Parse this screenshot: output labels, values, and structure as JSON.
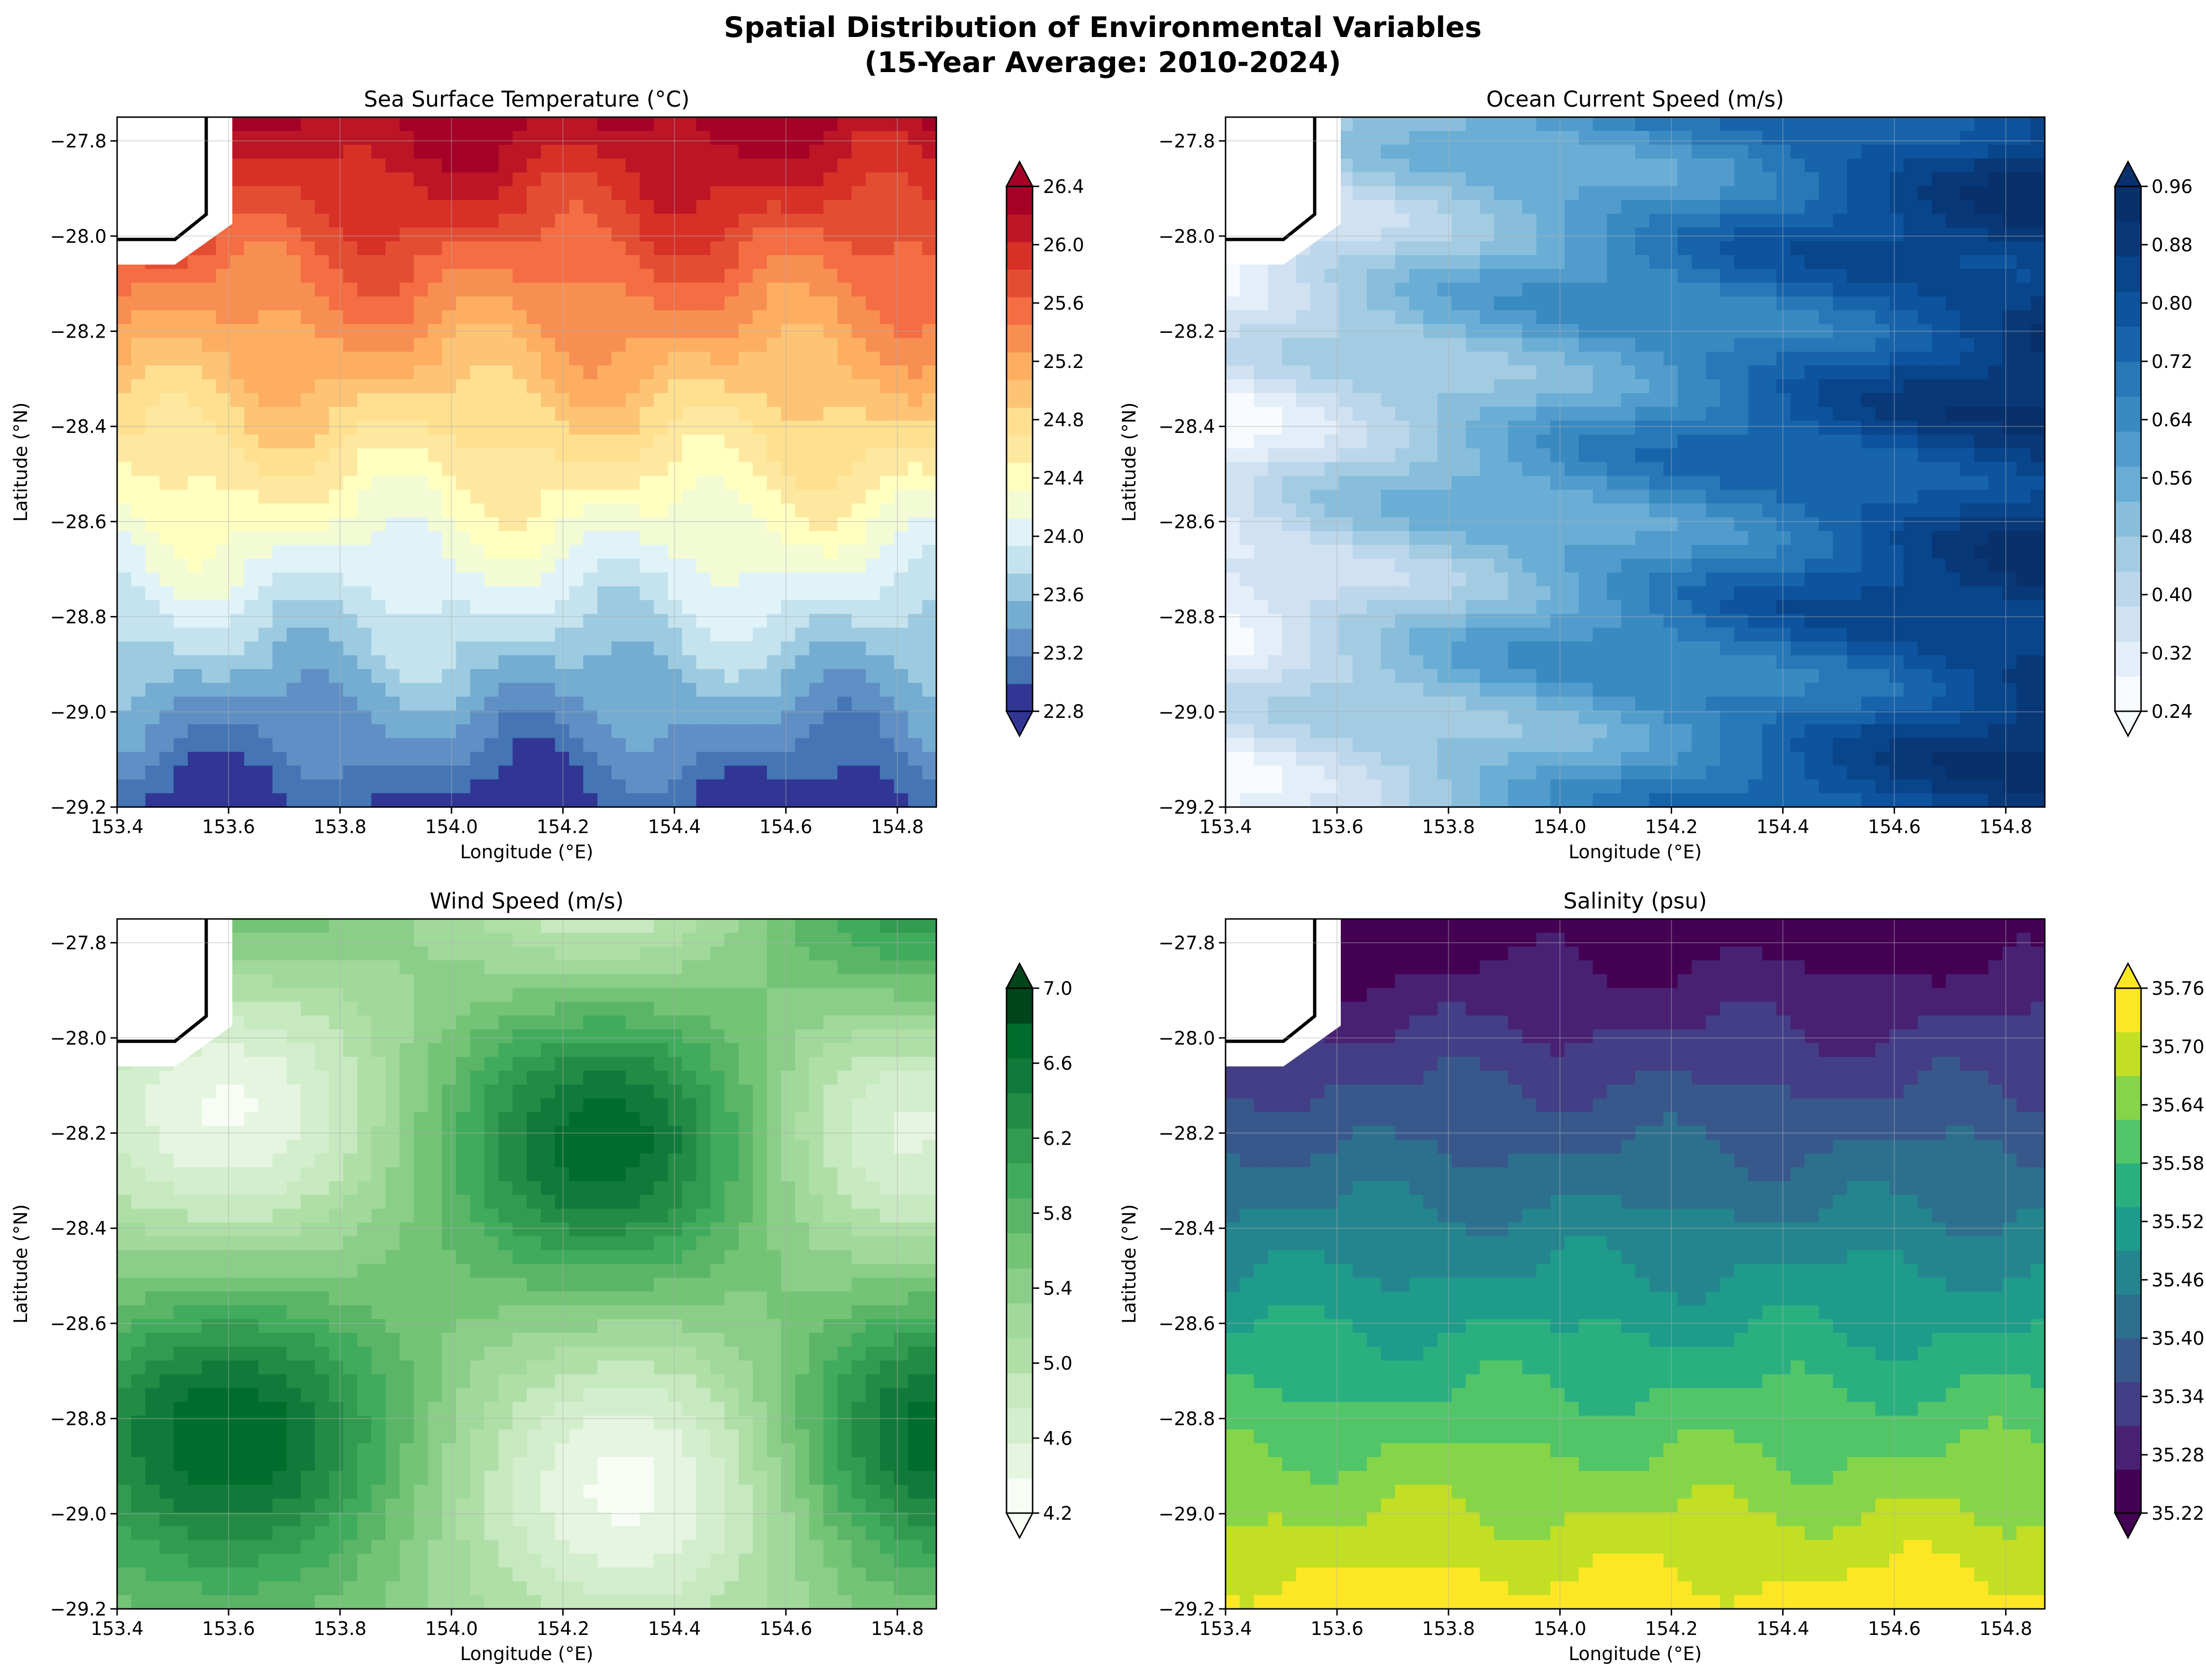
{
  "figure": {
    "title_line1": "Spatial Distribution of Environmental Variables",
    "title_line2": "(15-Year Average: 2010-2024)"
  },
  "chart_data": [
    {
      "type": "heatmap",
      "title": "Sea Surface Temperature (°C)",
      "xlabel": "Longitude (°E)",
      "ylabel": "Latitude (°N)",
      "xlim": [
        153.4,
        154.87
      ],
      "ylim": [
        -29.2,
        -27.75
      ],
      "xticks": [
        "153.4",
        "153.6",
        "153.8",
        "154.0",
        "154.2",
        "154.4",
        "154.6",
        "154.8"
      ],
      "yticks": [
        "−27.8",
        "−28.0",
        "−28.2",
        "−28.4",
        "−28.6",
        "−28.8",
        "−29.0",
        "−29.2"
      ],
      "colormap": "RdYlBu_r",
      "colorbar_range": [
        22.8,
        26.4
      ],
      "colorbar_ticks": [
        "22.8",
        "23.2",
        "23.6",
        "24.0",
        "24.4",
        "24.8",
        "25.2",
        "25.6",
        "26.0",
        "26.4"
      ],
      "colors": [
        "#313695",
        "#4575b4",
        "#5f8fc4",
        "#74add1",
        "#9ccbe1",
        "#c4e3ee",
        "#e0f3f8",
        "#f3fbd5",
        "#ffffbf",
        "#fee8a0",
        "#fee090",
        "#fdc475",
        "#fdae61",
        "#f88f52",
        "#f46d43",
        "#e34e33",
        "#d73027",
        "#bb1526",
        "#a50026"
      ],
      "grid": true,
      "pattern": "north-south",
      "field_range": [
        22.7,
        26.5
      ]
    },
    {
      "type": "heatmap",
      "title": "Ocean Current Speed (m/s)",
      "xlabel": "Longitude (°E)",
      "ylabel": "Latitude (°N)",
      "xlim": [
        153.4,
        154.87
      ],
      "ylim": [
        -29.2,
        -27.75
      ],
      "xticks": [
        "153.4",
        "153.6",
        "153.8",
        "154.0",
        "154.2",
        "154.4",
        "154.6",
        "154.8"
      ],
      "yticks": [
        "−27.8",
        "−28.0",
        "−28.2",
        "−28.4",
        "−28.6",
        "−28.8",
        "−29.0",
        "−29.2"
      ],
      "colormap": "Blues",
      "colorbar_range": [
        0.24,
        0.96
      ],
      "colorbar_ticks": [
        "0.24",
        "0.32",
        "0.40",
        "0.48",
        "0.56",
        "0.64",
        "0.72",
        "0.80",
        "0.88",
        "0.96"
      ],
      "colors": [
        "#f7fbff",
        "#e3eef9",
        "#d0e1f2",
        "#bcd7eb",
        "#a3cce3",
        "#88bedc",
        "#6aaed6",
        "#519ccc",
        "#3a8ac2",
        "#2878b8",
        "#1764ab",
        "#0d539e",
        "#08458a",
        "#083878",
        "#08306b"
      ],
      "grid": true,
      "pattern": "west-east",
      "field_range": [
        0.23,
        0.97
      ]
    },
    {
      "type": "heatmap",
      "title": "Wind Speed (m/s)",
      "xlabel": "Longitude (°E)",
      "ylabel": "Latitude (°N)",
      "xlim": [
        153.4,
        154.87
      ],
      "ylim": [
        -29.2,
        -27.75
      ],
      "xticks": [
        "153.4",
        "153.6",
        "153.8",
        "154.0",
        "154.2",
        "154.4",
        "154.6",
        "154.8"
      ],
      "yticks": [
        "−27.8",
        "−28.0",
        "−28.2",
        "−28.4",
        "−28.6",
        "−28.8",
        "−29.0",
        "−29.2"
      ],
      "colormap": "Greens",
      "colorbar_range": [
        4.2,
        7.0
      ],
      "colorbar_ticks": [
        "4.2",
        "4.6",
        "5.0",
        "5.4",
        "5.8",
        "6.2",
        "6.6",
        "7.0"
      ],
      "colors": [
        "#f7fcf5",
        "#e5f5e0",
        "#d3eecd",
        "#c7e9c0",
        "#afdfa7",
        "#a1d99b",
        "#8ace88",
        "#74c476",
        "#5ab567",
        "#41ab5d",
        "#329b51",
        "#238b45",
        "#117a3b",
        "#006d2c",
        "#00441b"
      ],
      "grid": true,
      "pattern": "checker",
      "field_range": [
        4.15,
        7.25
      ]
    },
    {
      "type": "heatmap",
      "title": "Salinity (psu)",
      "xlabel": "Longitude (°E)",
      "ylabel": "Latitude (°N)",
      "xlim": [
        153.4,
        154.87
      ],
      "ylim": [
        -29.2,
        -27.75
      ],
      "xticks": [
        "153.4",
        "153.6",
        "153.8",
        "154.0",
        "154.2",
        "154.4",
        "154.6",
        "154.8"
      ],
      "yticks": [
        "−27.8",
        "−28.0",
        "−28.2",
        "−28.4",
        "−28.6",
        "−28.8",
        "−29.0",
        "−29.2"
      ],
      "colormap": "viridis",
      "colorbar_range": [
        35.22,
        35.76
      ],
      "colorbar_ticks": [
        "35.22",
        "35.28",
        "35.34",
        "35.40",
        "35.46",
        "35.52",
        "35.58",
        "35.64",
        "35.70",
        "35.76"
      ],
      "colors": [
        "#440154",
        "#482173",
        "#433e85",
        "#38588c",
        "#2d708e",
        "#25858e",
        "#1e9b8a",
        "#2ab07f",
        "#52c569",
        "#86d549",
        "#c2df23",
        "#fde725"
      ],
      "grid": true,
      "pattern": "south-north",
      "field_range": [
        35.21,
        35.79
      ]
    }
  ]
}
